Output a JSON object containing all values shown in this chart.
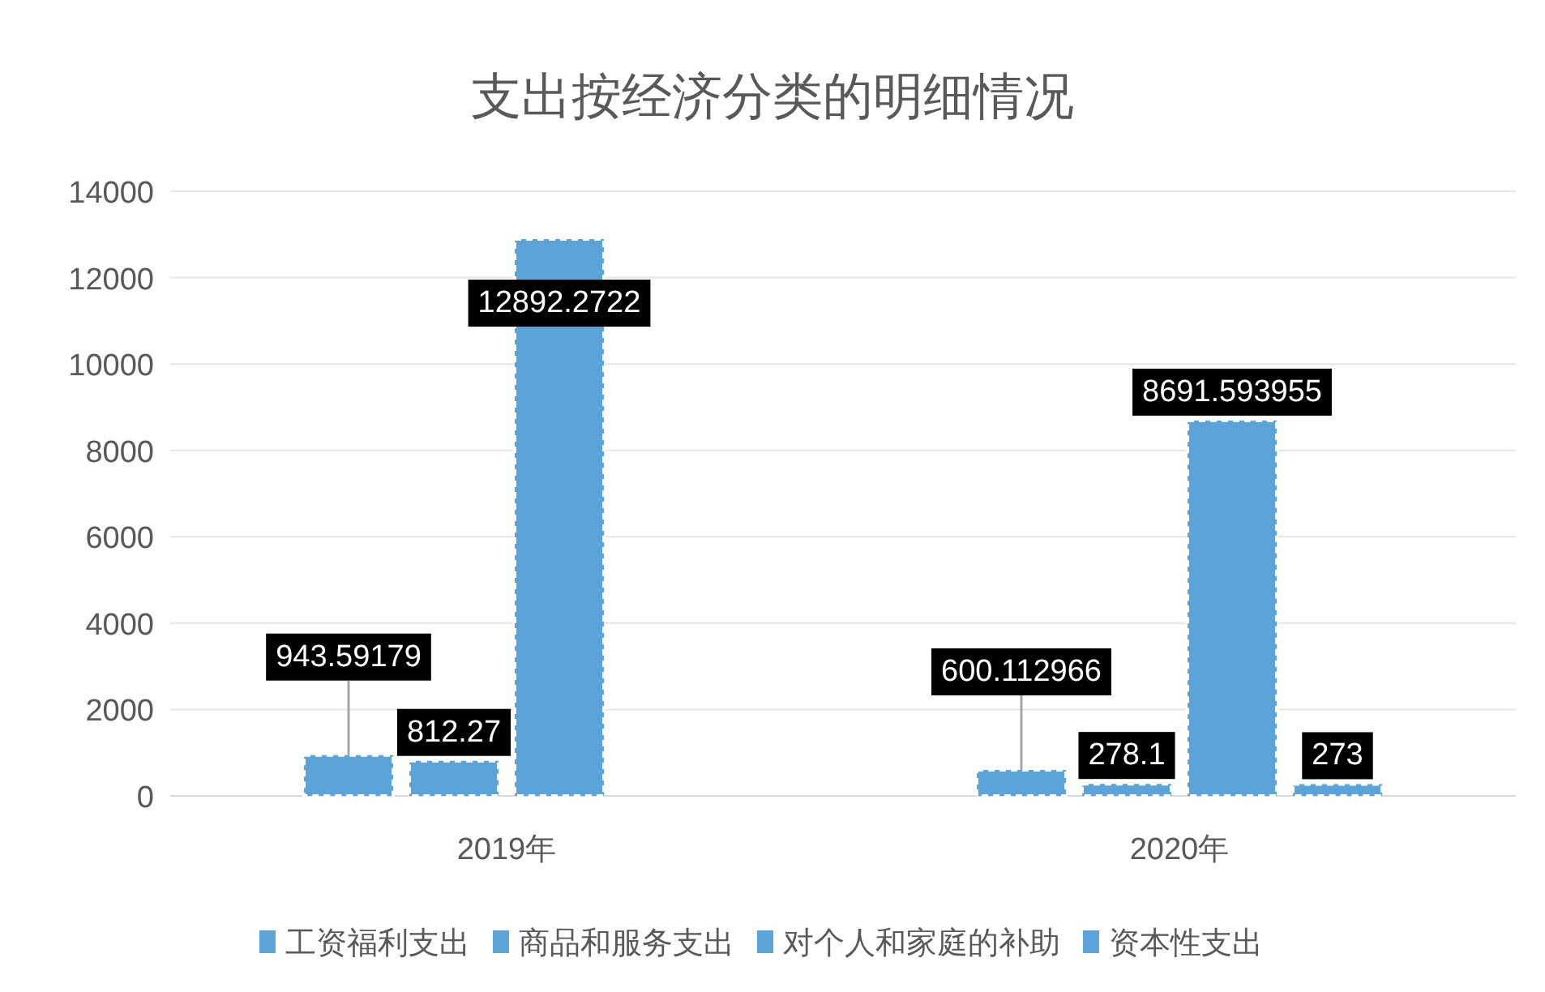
{
  "chart_data": {
    "type": "bar",
    "title": "支出按经济分类的明细情况",
    "categories": [
      "2019年",
      "2020年"
    ],
    "series": [
      {
        "name": "工资福利支出",
        "color": "#5ba3d9",
        "values": [
          943.59179,
          600.112966
        ]
      },
      {
        "name": "商品和服务支出",
        "color": "#5ba3d9",
        "values": [
          812.27,
          278.1
        ]
      },
      {
        "name": "对个人和家庭的补助",
        "color": "#5ba3d9",
        "values": [
          12892.2722,
          8691.593955
        ]
      },
      {
        "name": "资本性支出",
        "color": "#5ba3d9",
        "values": [
          null,
          273
        ]
      }
    ],
    "ylim": [
      0,
      14000
    ],
    "yticks": [
      0,
      2000,
      4000,
      6000,
      8000,
      10000,
      12000,
      14000
    ],
    "grid": "y",
    "legend": "bottom",
    "data_labels": true
  }
}
